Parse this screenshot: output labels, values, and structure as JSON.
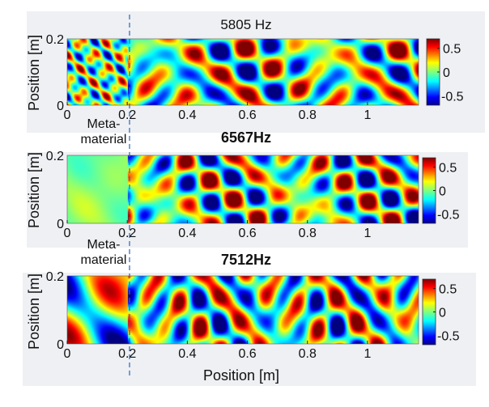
{
  "chart_data": [
    {
      "type": "heatmap",
      "title": "5805 Hz",
      "ylabel": "Position [m]",
      "xlabel": "",
      "xlim": [
        0,
        1.17
      ],
      "ylim": [
        0,
        0.2
      ],
      "x_ticks": [
        "0",
        "0.2",
        "0.4",
        "0.6",
        "0.8",
        "1"
      ],
      "y_ticks": [
        "0",
        "0.2"
      ],
      "colorbar": {
        "ticks": [
          "0.5",
          "0",
          "-0.5"
        ],
        "range": [
          -0.7,
          0.7
        ]
      },
      "annotation": "Meta-\nmaterial",
      "metamaterial_boundary_x": 0.2,
      "field": {
        "kx": 37.0,
        "ky": 48.0,
        "meta_kx": 70.0,
        "meta_damping": 0.0
      }
    },
    {
      "type": "heatmap",
      "title": "6567Hz",
      "ylabel": "Position [m]",
      "xlabel": "",
      "xlim": [
        0,
        1.17
      ],
      "ylim": [
        0,
        0.2
      ],
      "x_ticks": [
        "0",
        "0.2",
        "0.4",
        "0.6",
        "0.8",
        "1"
      ],
      "y_ticks": [
        "0",
        "0.2"
      ],
      "colorbar": {
        "ticks": [
          "0.5",
          "0",
          "-0.5"
        ],
        "range": [
          -0.7,
          0.7
        ]
      },
      "annotation": "Meta-\nmaterial",
      "metamaterial_boundary_x": 0.2,
      "field": {
        "kx": 42.0,
        "ky": 52.0,
        "meta_kx": 20.0,
        "meta_damping": 0.85
      }
    },
    {
      "type": "heatmap",
      "title": "7512Hz",
      "ylabel": "Position [m]",
      "xlabel": "Position [m]",
      "xlim": [
        0,
        1.17
      ],
      "ylim": [
        0,
        0.2
      ],
      "x_ticks": [
        "0",
        "0.2",
        "0.4",
        "0.6",
        "0.8",
        "1"
      ],
      "y_ticks": [
        "0",
        "0.2"
      ],
      "colorbar": {
        "ticks": [
          "0.5",
          "0",
          "-0.5"
        ],
        "range": [
          -0.7,
          0.7
        ]
      },
      "annotation": "",
      "metamaterial_boundary_x": 0.2,
      "field": {
        "kx": 48.0,
        "ky": 40.0,
        "meta_kx": 16.0,
        "meta_damping": 0.0
      }
    }
  ]
}
